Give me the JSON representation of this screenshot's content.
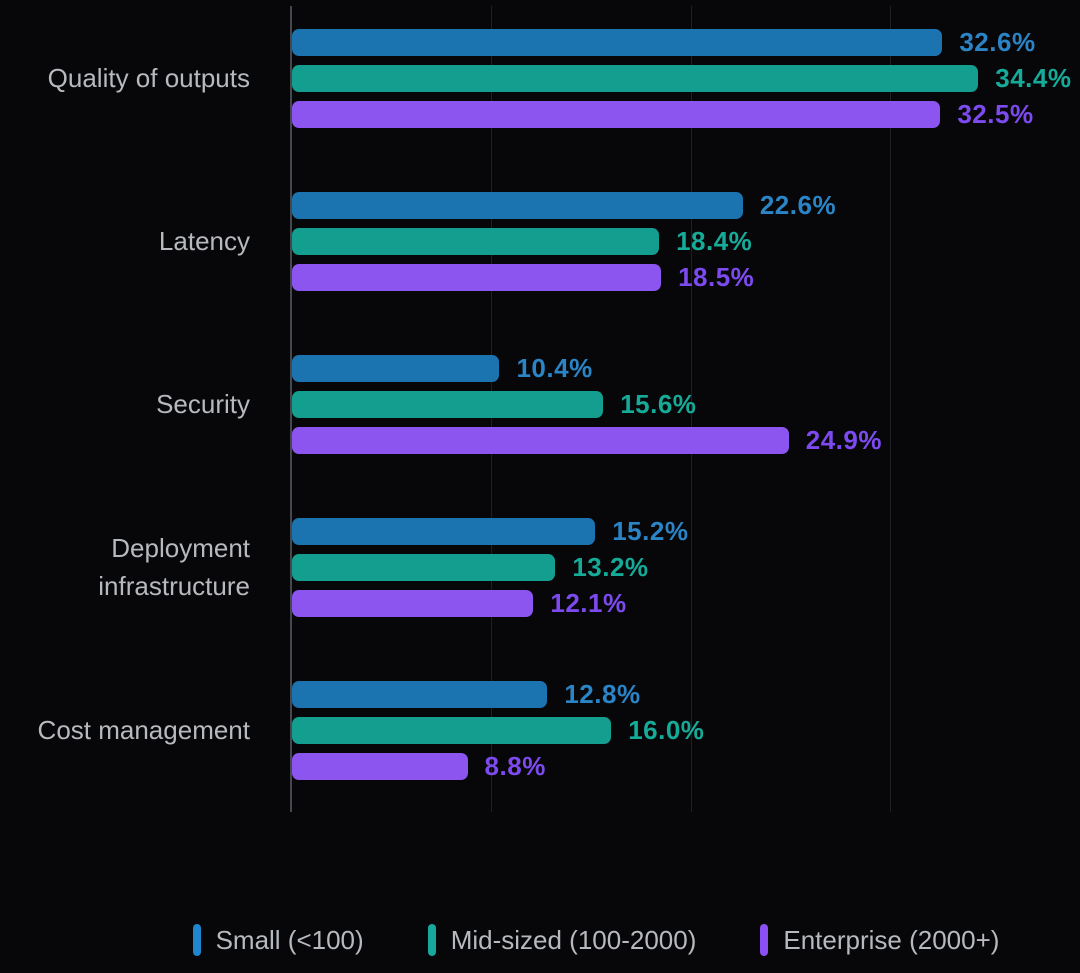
{
  "chart_data": {
    "type": "bar",
    "orientation": "horizontal",
    "categories": [
      "Quality of outputs",
      "Latency",
      "Security",
      "Deployment infrastructure",
      "Cost management"
    ],
    "series": [
      {
        "name": "Small (<100)",
        "bar_color": "#1b73af",
        "text_color": "#2b84c6",
        "marker_color": "#1f85cd",
        "values": [
          32.6,
          22.6,
          10.4,
          15.2,
          12.8
        ],
        "labels": [
          "32.6%",
          "22.6%",
          "10.4%",
          "15.2%",
          "12.8%"
        ]
      },
      {
        "name": "Mid-sized (100-2000)",
        "bar_color": "#139e8f",
        "text_color": "#16ab99",
        "marker_color": "#16a89c",
        "values": [
          34.4,
          18.4,
          15.6,
          13.2,
          16.0
        ],
        "labels": [
          "34.4%",
          "18.4%",
          "15.6%",
          "13.2%",
          "16.0%"
        ]
      },
      {
        "name": "Enterprise (2000+)",
        "bar_color": "#8c55f0",
        "text_color": "#7d4af0",
        "marker_color": "#8a50f3",
        "values": [
          32.5,
          18.5,
          24.9,
          12.1,
          8.8
        ],
        "labels": [
          "32.5%",
          "18.5%",
          "24.9%",
          "12.1%",
          "8.8%"
        ]
      }
    ],
    "xlim": [
      0,
      39.5
    ],
    "gridlines_at": [
      10,
      20,
      30
    ],
    "grid": "vertical-faint",
    "legend_position": "bottom",
    "colors": {
      "background": "#070709",
      "axis": "#45484f",
      "gridline": "#1e2026",
      "category_label": "#b6b9bd",
      "legend_text": "#b6b9bd"
    }
  }
}
